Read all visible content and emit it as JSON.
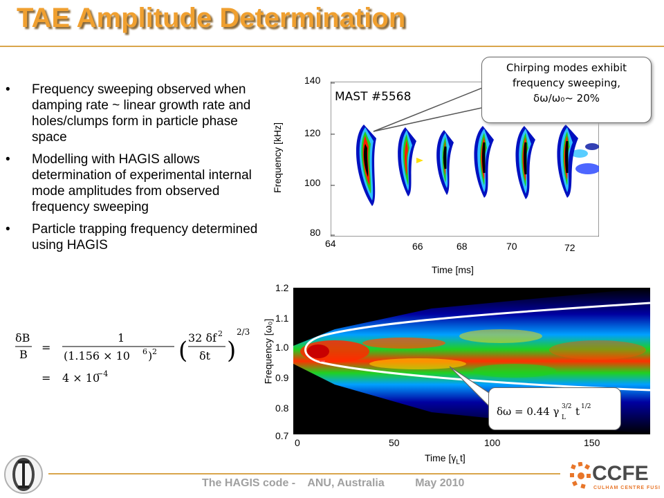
{
  "slide": {
    "title": "TAE Amplitude Determination",
    "bullets": [
      "Frequency sweeping observed when damping rate ~ linear growth rate and holes/clumps form in particle phase space",
      "Modelling with HAGIS allows determination of experimental internal mode amplitudes from observed frequency sweeping",
      "Particle trapping frequency determined using HAGIS"
    ],
    "equation": {
      "lhs": "δB / B",
      "line1": "= 1 / (1.156 × 10⁶)² · (32 δf² / δt)^(2/3)",
      "line2": "= 4 × 10⁻⁴"
    },
    "footer": {
      "left": "The HAGIS code -",
      "middle": "ANU, Australia",
      "right": "May 2010"
    },
    "logo_text": "CCFE",
    "logo_subtext": "CULHAM CENTRE FUSION ENERGY"
  },
  "top_plot": {
    "shot_label": "MAST #5568",
    "ylabel": "Frequency [kHz]",
    "xlabel": "Time [ms]",
    "yticks": [
      "140",
      "120",
      "100",
      "80"
    ],
    "xticks": [
      "64",
      "66",
      "68",
      "70",
      "72"
    ]
  },
  "callout": {
    "line1": "Chirping modes exhibit",
    "line2": "frequency sweeping,",
    "line3": "δω/ω₀~ 20%"
  },
  "bottom_plot": {
    "ylabel": "Frequency [ω₀]",
    "xlabel": "Time [γ",
    "xlabel_sub": "L",
    "xlabel_end": "t]",
    "yticks": [
      "1.2",
      "1.1",
      "1.0",
      "0.9",
      "0.8",
      "0.7"
    ],
    "xticks": [
      "0",
      "50",
      "100",
      "150"
    ],
    "formula": "δω = 0.44 γL^(3/2) t^(1/2)"
  },
  "colors": {
    "title": "#f0a030",
    "rule": "#d9a54a",
    "footer": "#a0a0a0",
    "logo_orange": "#e8762a"
  }
}
